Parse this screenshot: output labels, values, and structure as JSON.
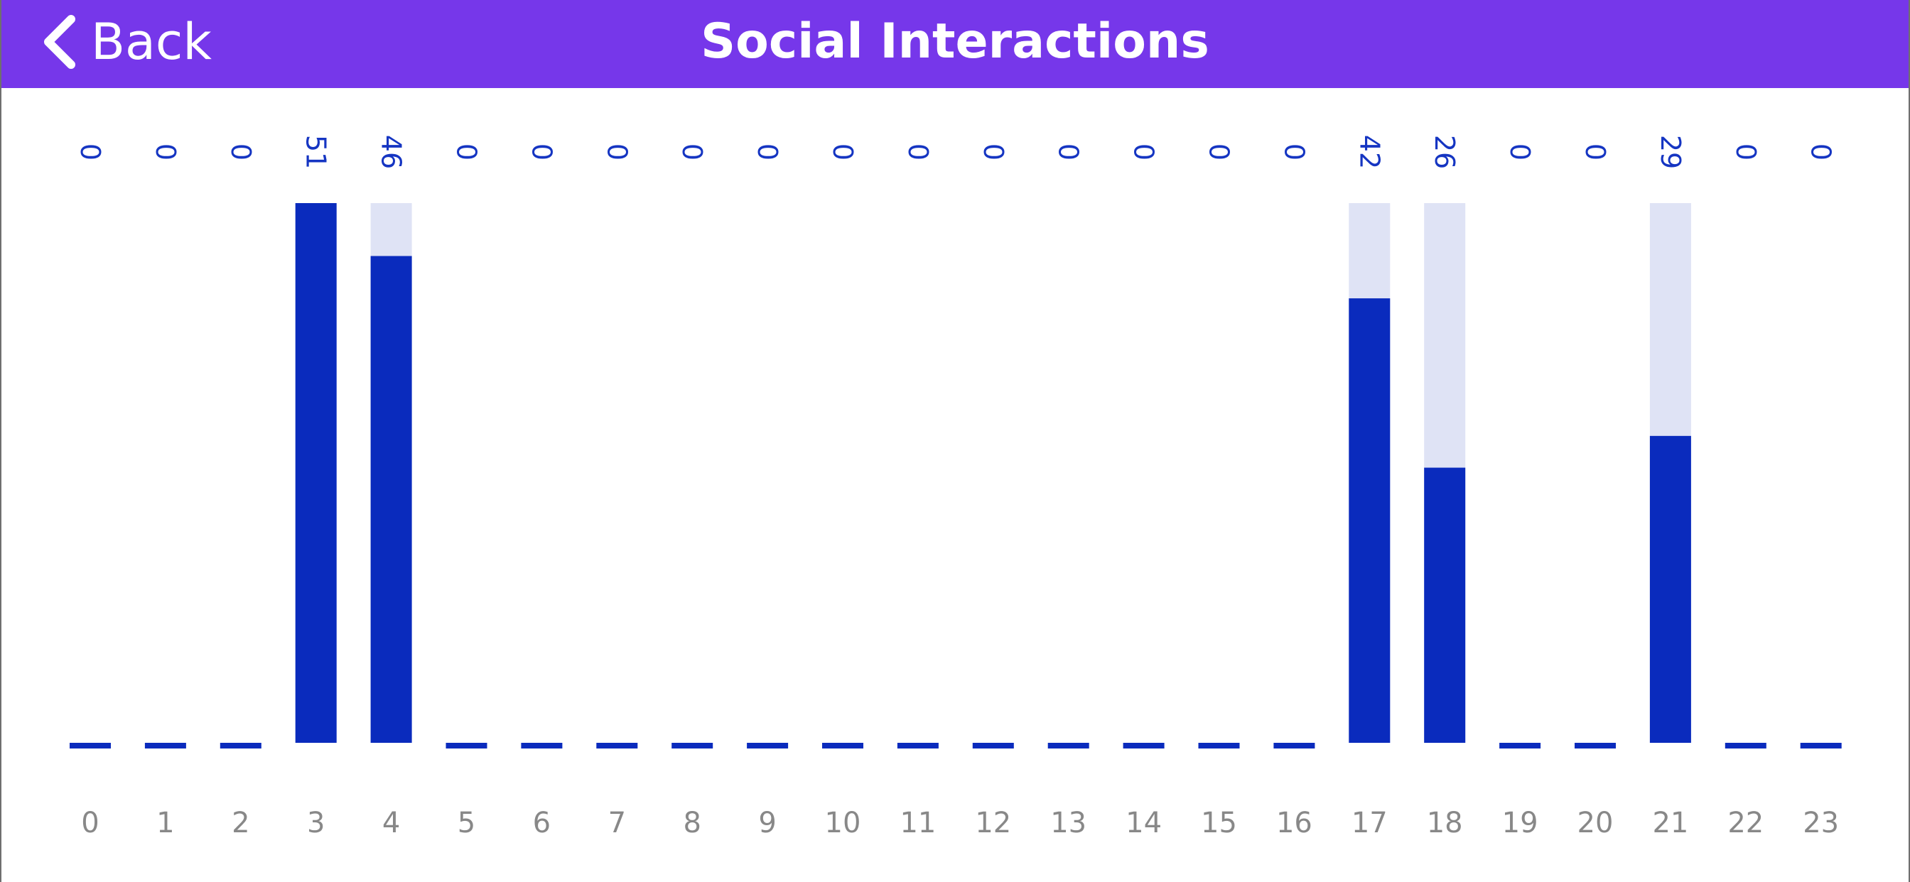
{
  "navbar": {
    "back_label": "Back",
    "title": "Social Interactions"
  },
  "colors": {
    "navbar": "#7637ea",
    "bar": "#0a2bbd",
    "track": "#dfe3f5",
    "value_label": "#1535c2",
    "tick_label": "#888888"
  },
  "chart_data": {
    "type": "bar",
    "title": "",
    "xlabel": "",
    "ylabel": "",
    "categories": [
      "0",
      "1",
      "2",
      "3",
      "4",
      "5",
      "6",
      "7",
      "8",
      "9",
      "10",
      "11",
      "12",
      "13",
      "14",
      "15",
      "16",
      "17",
      "18",
      "19",
      "20",
      "21",
      "22",
      "23"
    ],
    "values": [
      0,
      0,
      0,
      51,
      46,
      0,
      0,
      0,
      0,
      0,
      0,
      0,
      0,
      0,
      0,
      0,
      0,
      42,
      26,
      0,
      0,
      29,
      0,
      0
    ],
    "ylim": [
      0,
      51
    ],
    "value_labels_rotated": true,
    "grid": false,
    "legend": "none"
  }
}
